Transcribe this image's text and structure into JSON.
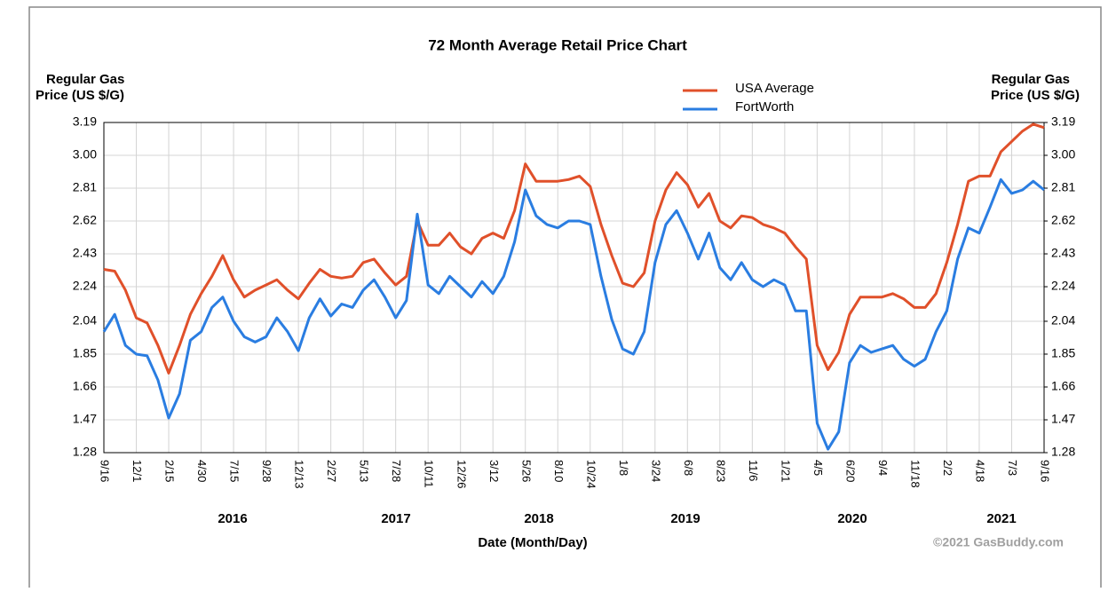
{
  "chart_data": {
    "type": "line",
    "title": "72 Month Average Retail Price Chart",
    "y_label": [
      "Regular Gas",
      "Price (US $/G)"
    ],
    "y2_label": [
      "Regular Gas",
      "Price (US $/G)"
    ],
    "x_label": "Date (Month/Day)",
    "year_labels": [
      "2016",
      "2017",
      "2018",
      "2019",
      "2020",
      "2021"
    ],
    "credit": "©2021 GasBuddy.com",
    "categories": [
      "9/16",
      null,
      null,
      "12/1",
      null,
      null,
      "2/15",
      null,
      null,
      "4/30",
      null,
      null,
      "7/15",
      null,
      null,
      "9/28",
      null,
      null,
      "12/13",
      null,
      null,
      "2/27",
      null,
      null,
      "5/13",
      null,
      null,
      "7/28",
      null,
      null,
      "10/11",
      null,
      null,
      "12/26",
      null,
      null,
      "3/12",
      null,
      null,
      "5/26",
      null,
      null,
      "8/10",
      null,
      null,
      "10/24",
      null,
      null,
      "1/8",
      null,
      null,
      "3/24",
      null,
      null,
      "6/8",
      null,
      null,
      "8/23",
      null,
      null,
      "11/6",
      null,
      null,
      "1/21",
      null,
      null,
      "4/5",
      null,
      null,
      "6/20",
      null,
      null,
      "9/4",
      null,
      null,
      "11/18",
      null,
      null,
      "2/2",
      null,
      null,
      "4/18",
      null,
      null,
      "7/3",
      null,
      null,
      "9/16"
    ],
    "series": [
      {
        "name": "USA Average",
        "color": "#e0502a",
        "values": [
          2.34,
          2.33,
          2.22,
          2.06,
          2.03,
          1.9,
          1.74,
          1.9,
          2.08,
          2.2,
          2.3,
          2.42,
          2.28,
          2.18,
          2.22,
          2.25,
          2.28,
          2.22,
          2.17,
          2.26,
          2.34,
          2.3,
          2.29,
          2.3,
          2.38,
          2.4,
          2.32,
          2.25,
          2.3,
          2.62,
          2.48,
          2.48,
          2.55,
          2.47,
          2.43,
          2.52,
          2.55,
          2.52,
          2.68,
          2.95,
          2.85,
          2.85,
          2.85,
          2.86,
          2.88,
          2.82,
          2.6,
          2.42,
          2.26,
          2.24,
          2.32,
          2.62,
          2.8,
          2.9,
          2.83,
          2.7,
          2.78,
          2.62,
          2.58,
          2.65,
          2.64,
          2.6,
          2.58,
          2.55,
          2.47,
          2.4,
          1.9,
          1.76,
          1.86,
          2.08,
          2.18,
          2.18,
          2.18,
          2.2,
          2.17,
          2.12,
          2.12,
          2.2,
          2.38,
          2.6,
          2.85,
          2.88,
          2.88,
          3.02,
          3.08,
          3.14,
          3.18,
          3.16
        ]
      },
      {
        "name": "FortWorth",
        "color": "#2a7de1",
        "values": [
          1.98,
          2.08,
          1.9,
          1.85,
          1.84,
          1.7,
          1.48,
          1.62,
          1.93,
          1.98,
          2.12,
          2.18,
          2.04,
          1.95,
          1.92,
          1.95,
          2.06,
          1.98,
          1.87,
          2.06,
          2.17,
          2.07,
          2.14,
          2.12,
          2.22,
          2.28,
          2.18,
          2.06,
          2.16,
          2.66,
          2.25,
          2.2,
          2.3,
          2.24,
          2.18,
          2.27,
          2.2,
          2.3,
          2.5,
          2.8,
          2.65,
          2.6,
          2.58,
          2.62,
          2.62,
          2.6,
          2.3,
          2.05,
          1.88,
          1.85,
          1.98,
          2.38,
          2.6,
          2.68,
          2.55,
          2.4,
          2.55,
          2.35,
          2.28,
          2.38,
          2.28,
          2.24,
          2.28,
          2.25,
          2.1,
          2.1,
          1.45,
          1.3,
          1.4,
          1.8,
          1.9,
          1.86,
          1.88,
          1.9,
          1.82,
          1.78,
          1.82,
          1.98,
          2.1,
          2.4,
          2.58,
          2.55,
          2.7,
          2.86,
          2.78,
          2.8,
          2.85,
          2.8
        ]
      }
    ],
    "ylim": [
      1.28,
      3.19
    ],
    "yticks": [
      1.28,
      1.47,
      1.66,
      1.85,
      2.04,
      2.24,
      2.43,
      2.62,
      2.81,
      {
        "value": 3,
        "label": "3.00"
      },
      3.19
    ],
    "y2lim": [
      1.28,
      3.19
    ],
    "y2ticks": [
      1.28,
      1.47,
      1.66,
      1.85,
      2.04,
      2.24,
      2.43,
      2.62,
      2.81,
      {
        "value": 3,
        "label": "3.00"
      },
      3.19
    ],
    "grid": true
  }
}
